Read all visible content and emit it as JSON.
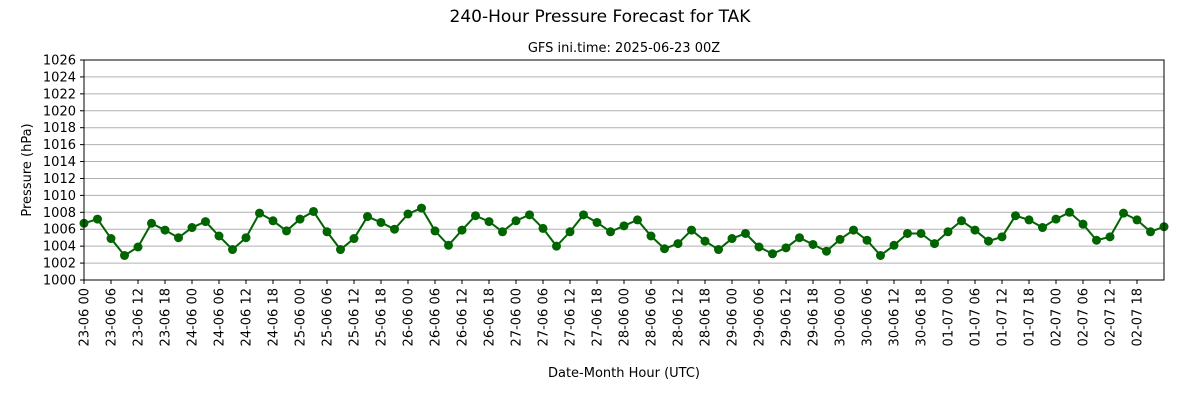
{
  "chart_data": {
    "type": "line",
    "title": "240-Hour Pressure Forecast for TAK",
    "subtitle": "GFS ini.time: 2025-06-23 00Z",
    "xlabel": "Date-Month Hour (UTC)",
    "ylabel": "Pressure (hPa)",
    "ylim": [
      1000,
      1026
    ],
    "yticks": [
      1000,
      1002,
      1004,
      1006,
      1008,
      1010,
      1012,
      1014,
      1016,
      1018,
      1020,
      1022,
      1024,
      1026
    ],
    "grid": "horizontal",
    "line_color": "#006400",
    "x_tick_labels": [
      "23-06 00",
      "23-06 06",
      "23-06 12",
      "23-06 18",
      "24-06 00",
      "24-06 06",
      "24-06 12",
      "24-06 18",
      "25-06 00",
      "25-06 06",
      "25-06 12",
      "25-06 18",
      "26-06 00",
      "26-06 06",
      "26-06 12",
      "26-06 18",
      "27-06 00",
      "27-06 06",
      "27-06 12",
      "27-06 18",
      "28-06 00",
      "28-06 06",
      "28-06 12",
      "28-06 18",
      "29-06 00",
      "29-06 06",
      "29-06 12",
      "29-06 18",
      "30-06 00",
      "30-06 06",
      "30-06 12",
      "30-06 18",
      "01-07 00",
      "01-07 06",
      "01-07 12",
      "01-07 18",
      "02-07 00",
      "02-07 06",
      "02-07 12",
      "02-07 18"
    ],
    "series": [
      {
        "x": [
          "23-06 00",
          "23-06 03",
          "23-06 06",
          "23-06 09",
          "23-06 12",
          "23-06 15",
          "23-06 18",
          "23-06 21",
          "24-06 00",
          "24-06 03",
          "24-06 06",
          "24-06 09",
          "24-06 12",
          "24-06 15",
          "24-06 18",
          "24-06 21",
          "25-06 00",
          "25-06 03",
          "25-06 06",
          "25-06 09",
          "25-06 12",
          "25-06 15",
          "25-06 18",
          "25-06 21",
          "26-06 00",
          "26-06 03",
          "26-06 06",
          "26-06 09",
          "26-06 12",
          "26-06 15",
          "26-06 18",
          "26-06 21",
          "27-06 00",
          "27-06 03",
          "27-06 06",
          "27-06 09",
          "27-06 12",
          "27-06 15",
          "27-06 18",
          "27-06 21",
          "28-06 00",
          "28-06 03",
          "28-06 06",
          "28-06 09",
          "28-06 12",
          "28-06 15",
          "28-06 18",
          "28-06 21",
          "29-06 00",
          "29-06 03",
          "29-06 06",
          "29-06 09",
          "29-06 12",
          "29-06 15",
          "29-06 18",
          "29-06 21",
          "30-06 00",
          "30-06 03",
          "30-06 06",
          "30-06 09",
          "30-06 12",
          "30-06 15",
          "30-06 18",
          "30-06 21",
          "01-07 00",
          "01-07 03",
          "01-07 06",
          "01-07 09",
          "01-07 12",
          "01-07 15",
          "01-07 18",
          "01-07 21",
          "02-07 00",
          "02-07 03",
          "02-07 06",
          "02-07 09",
          "02-07 12",
          "02-07 15",
          "02-07 18",
          "02-07 21",
          "03-07 00"
        ],
        "values": [
          1006.7,
          1007.2,
          1004.9,
          1002.9,
          1003.9,
          1006.7,
          1005.9,
          1005.0,
          1006.2,
          1006.9,
          1005.2,
          1003.6,
          1005.0,
          1007.9,
          1007.0,
          1005.8,
          1007.2,
          1008.1,
          1005.7,
          1003.6,
          1004.9,
          1007.5,
          1006.8,
          1006.0,
          1007.8,
          1008.5,
          1005.8,
          1004.1,
          1005.9,
          1007.6,
          1006.9,
          1005.7,
          1007.0,
          1007.7,
          1006.1,
          1004.0,
          1005.7,
          1007.7,
          1006.8,
          1005.7,
          1006.4,
          1007.1,
          1005.2,
          1003.7,
          1004.3,
          1005.9,
          1004.6,
          1003.6,
          1004.9,
          1005.5,
          1003.9,
          1003.1,
          1003.8,
          1005.0,
          1004.2,
          1003.4,
          1004.8,
          1005.9,
          1004.7,
          1002.9,
          1004.1,
          1005.5,
          1005.5,
          1004.3,
          1005.7,
          1007.0,
          1005.9,
          1004.6,
          1005.1,
          1007.6,
          1007.1,
          1006.2,
          1007.2,
          1008.0,
          1006.6,
          1004.7,
          1005.1,
          1007.9,
          1007.1,
          1005.7,
          1006.3
        ]
      }
    ]
  }
}
